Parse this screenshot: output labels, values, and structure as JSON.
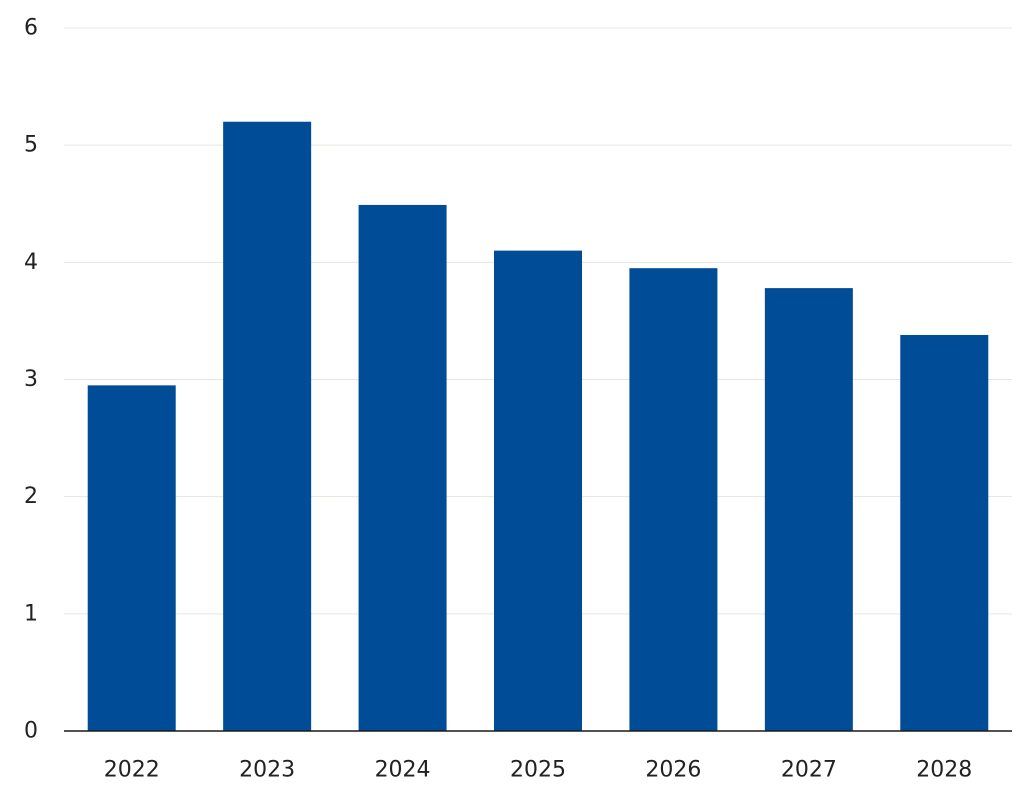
{
  "chart_data": {
    "type": "bar",
    "title": "",
    "xlabel": "",
    "ylabel": "",
    "categories": [
      "2022",
      "2023",
      "2024",
      "2025",
      "2026",
      "2027",
      "2028"
    ],
    "values": [
      2.95,
      5.2,
      4.49,
      4.1,
      3.95,
      3.78,
      3.38
    ],
    "ylim": [
      0,
      6
    ],
    "yticks": [
      "0",
      "1",
      "2",
      "3",
      "4",
      "5",
      "6"
    ],
    "grid": true,
    "bar_color": "#004c97",
    "grid_color": "#e6e6de",
    "axis_color": "#1a1a1a"
  }
}
